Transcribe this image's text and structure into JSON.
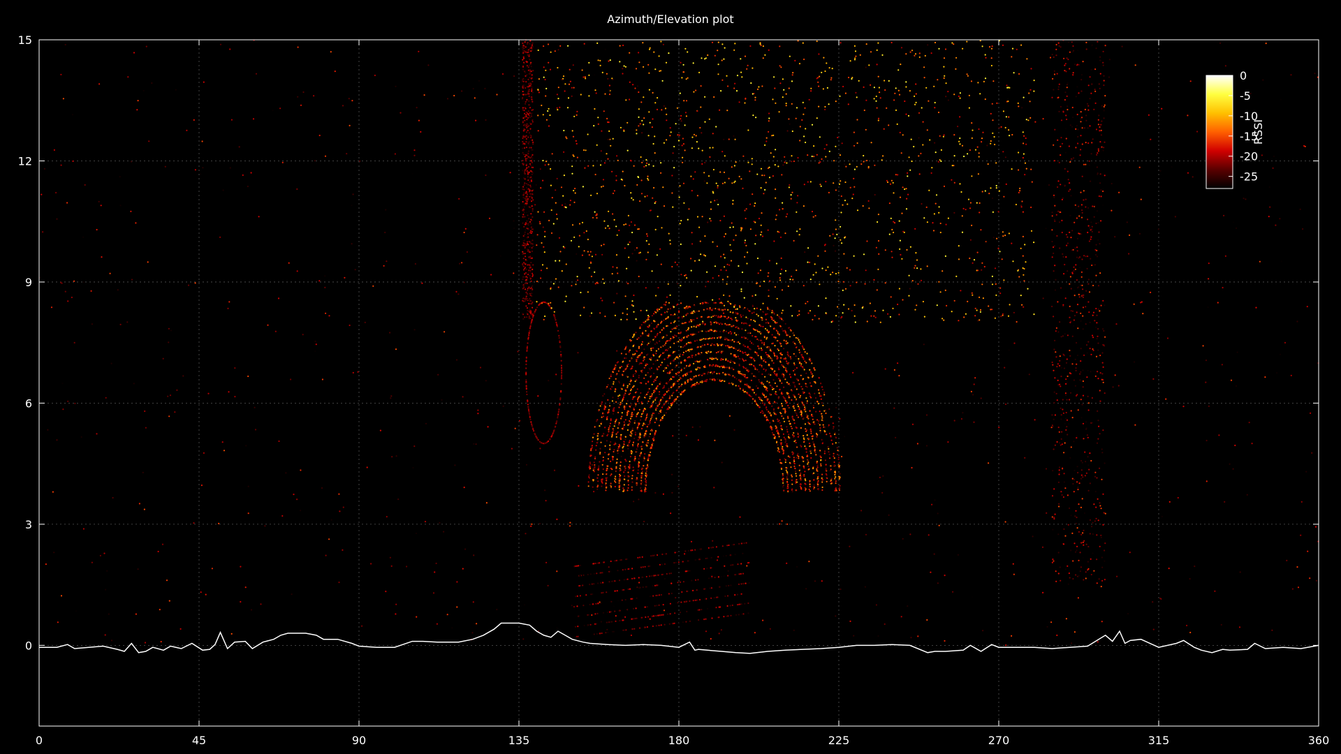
{
  "chart_data": {
    "type": "scatter",
    "title": "Azimuth/Elevation plot",
    "xlabel": "",
    "ylabel": "",
    "xlim": [
      0,
      360
    ],
    "ylim": [
      -2,
      15
    ],
    "xticks": [
      0,
      45,
      90,
      135,
      180,
      225,
      270,
      315,
      360
    ],
    "yticks": [
      0,
      3,
      6,
      9,
      12,
      15
    ],
    "grid": true,
    "background": "#000000",
    "colorbar": {
      "label": "RSSI",
      "range": [
        -28,
        0
      ],
      "ticks": [
        0,
        -5,
        -10,
        -15,
        -20,
        -25
      ],
      "colors": [
        "#000000",
        "#5a0000",
        "#d00000",
        "#ff6000",
        "#ffc000",
        "#ffff40",
        "#ffffff"
      ],
      "placement": "top-right"
    },
    "horizon_series": {
      "name": "",
      "color": "#ffffff",
      "x": [
        0,
        5,
        8,
        10,
        14,
        18,
        22,
        24,
        26,
        28,
        30,
        32,
        35,
        37,
        40,
        43,
        46,
        48,
        49.5,
        51,
        53,
        55,
        58,
        60,
        63,
        66,
        68,
        70,
        72,
        75,
        78,
        80,
        84,
        88,
        90,
        95,
        100,
        105,
        108,
        112,
        118,
        122,
        125,
        128,
        130,
        132,
        135,
        138,
        140,
        142,
        144,
        146,
        148,
        150,
        153,
        155,
        160,
        165,
        170,
        175,
        180,
        183,
        184.5,
        185.5,
        188,
        192,
        196,
        200,
        205,
        210,
        215,
        220,
        225,
        230,
        235,
        240,
        245,
        250,
        252,
        255,
        260,
        262,
        265,
        268,
        270,
        275,
        280,
        285,
        290,
        295,
        300,
        302,
        304,
        305.5,
        307,
        310,
        315,
        320,
        322,
        325,
        327,
        330,
        333,
        335,
        340,
        342,
        345,
        350,
        355,
        360
      ],
      "y": [
        -0.05,
        -0.05,
        0.02,
        -0.08,
        -0.05,
        -0.02,
        -0.1,
        -0.15,
        0.05,
        -0.18,
        -0.15,
        -0.05,
        -0.12,
        -0.02,
        -0.08,
        0.05,
        -0.12,
        -0.1,
        0.02,
        0.32,
        -0.08,
        0.08,
        0.1,
        -0.08,
        0.08,
        0.15,
        0.25,
        0.3,
        0.3,
        0.3,
        0.25,
        0.15,
        0.15,
        0.05,
        -0.02,
        -0.05,
        -0.05,
        0.1,
        0.1,
        0.08,
        0.08,
        0.15,
        0.25,
        0.4,
        0.55,
        0.55,
        0.55,
        0.5,
        0.35,
        0.25,
        0.2,
        0.35,
        0.25,
        0.15,
        0.08,
        0.05,
        0.02,
        0.0,
        0.02,
        0.0,
        -0.05,
        0.08,
        -0.12,
        -0.1,
        -0.12,
        -0.15,
        -0.18,
        -0.2,
        -0.15,
        -0.12,
        -0.1,
        -0.08,
        -0.05,
        0.0,
        0.0,
        0.02,
        0.0,
        -0.18,
        -0.15,
        -0.15,
        -0.12,
        0.0,
        -0.15,
        0.02,
        -0.05,
        -0.05,
        -0.05,
        -0.08,
        -0.05,
        -0.02,
        0.25,
        0.1,
        0.35,
        0.05,
        0.12,
        0.15,
        -0.05,
        0.05,
        0.12,
        -0.05,
        -0.12,
        -0.18,
        -0.1,
        -0.12,
        -0.1,
        0.05,
        -0.08,
        -0.05,
        -0.08,
        0.0
      ]
    },
    "scatter_summary": {
      "description": "",
      "clusters": [
        {
          "x_range": [
            155,
            225
          ],
          "y_range": [
            3.5,
            8.5
          ],
          "rssi_range": [
            -25,
            -10
          ],
          "shape": "dome"
        },
        {
          "x_range": [
            135,
            140
          ],
          "y_range": [
            8,
            15
          ],
          "rssi_range": [
            -28,
            -18
          ],
          "shape": "vertical"
        },
        {
          "x_range": [
            137,
            147
          ],
          "y_range": [
            5,
            8.5
          ],
          "rssi_range": [
            -25,
            -18
          ],
          "shape": "loop"
        },
        {
          "x_range": [
            150,
            200
          ],
          "y_range": [
            0.5,
            2.5
          ],
          "rssi_range": [
            -28,
            -18
          ],
          "shape": "streaks"
        },
        {
          "x_range": [
            140,
            280
          ],
          "y_range": [
            8,
            15
          ],
          "rssi_range": [
            -20,
            -5
          ],
          "shape": "sparse"
        },
        {
          "x_range": [
            280,
            305
          ],
          "y_range": [
            1.5,
            15
          ],
          "rssi_range": [
            -28,
            -15
          ],
          "shape": "vertical"
        },
        {
          "x_range": [
            0,
            360
          ],
          "y_range": [
            0,
            15
          ],
          "rssi_range": [
            -28,
            -15
          ],
          "shape": "background"
        }
      ]
    }
  }
}
